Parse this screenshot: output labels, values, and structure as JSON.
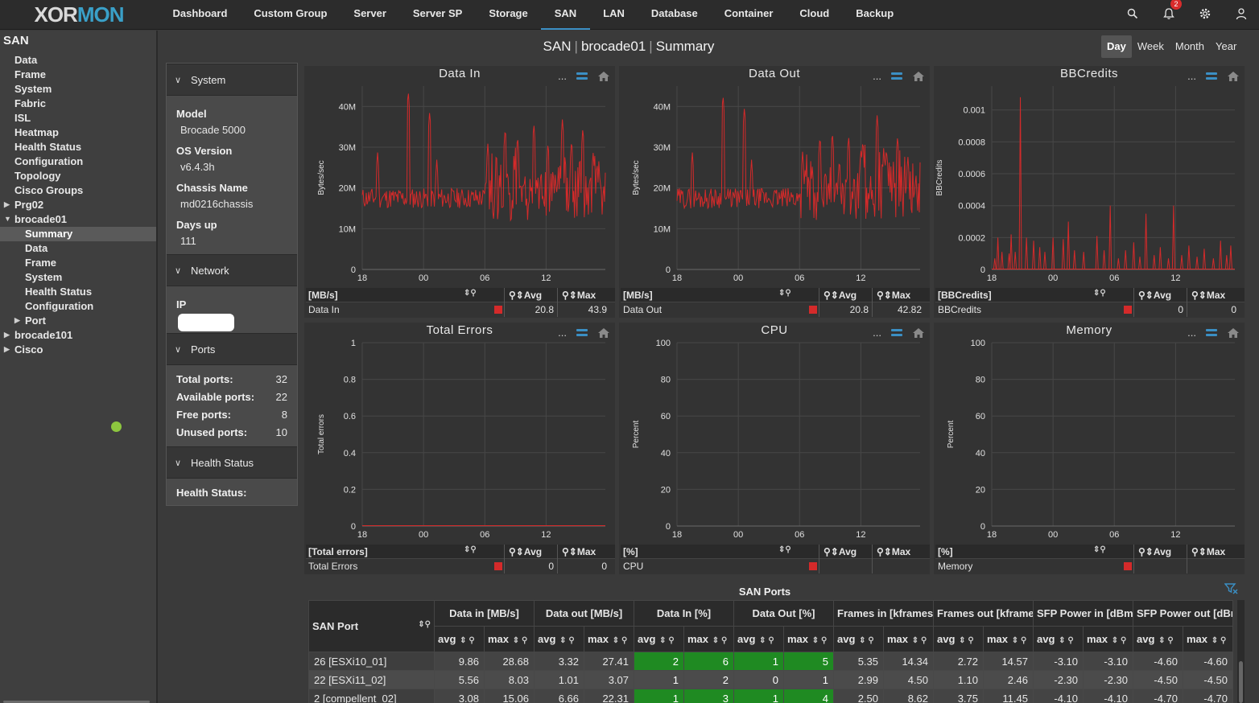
{
  "app": {
    "logo_left": "XOR",
    "logo_right": "MON"
  },
  "nav": {
    "items": [
      "Dashboard",
      "Custom Group",
      "Server",
      "Server SP",
      "Storage",
      "SAN",
      "LAN",
      "Database",
      "Container",
      "Cloud",
      "Backup"
    ],
    "active": "SAN"
  },
  "notifications": {
    "count": "2"
  },
  "sidebar": {
    "title": "SAN",
    "items": [
      {
        "label": "Data",
        "level": 1
      },
      {
        "label": "Frame",
        "level": 1
      },
      {
        "label": "System",
        "level": 1
      },
      {
        "label": "Fabric",
        "level": 1
      },
      {
        "label": "ISL",
        "level": 1
      },
      {
        "label": "Heatmap",
        "level": 1
      },
      {
        "label": "Health Status",
        "level": 1
      },
      {
        "label": "Configuration",
        "level": 1
      },
      {
        "label": "Topology",
        "level": 1
      },
      {
        "label": "Cisco Groups",
        "level": 1
      },
      {
        "label": "Prg02",
        "level": 1,
        "arrow": "collapsed"
      },
      {
        "label": "brocade01",
        "level": 1,
        "arrow": "expanded"
      },
      {
        "label": "Summary",
        "level": 2,
        "selected": true
      },
      {
        "label": "Data",
        "level": 2
      },
      {
        "label": "Frame",
        "level": 2
      },
      {
        "label": "System",
        "level": 2
      },
      {
        "label": "Health Status",
        "level": 2
      },
      {
        "label": "Configuration",
        "level": 2
      },
      {
        "label": "Port",
        "level": 2,
        "arrow": "collapsed"
      },
      {
        "label": "brocade101",
        "level": 1,
        "arrow": "collapsed"
      },
      {
        "label": "Cisco",
        "level": 1,
        "arrow": "collapsed"
      }
    ]
  },
  "header": {
    "section": "SAN",
    "device": "brocade01",
    "page": "Summary"
  },
  "range_tabs": {
    "items": [
      "Day",
      "Week",
      "Month",
      "Year"
    ],
    "active": "Day"
  },
  "info": {
    "system": {
      "title": "System",
      "model_label": "Model",
      "model": "Brocade 5000",
      "os_label": "OS Version",
      "os": "v6.4.3h",
      "chassis_label": "Chassis Name",
      "chassis": "md0216chassis",
      "days_label": "Days up",
      "days": "111"
    },
    "network": {
      "title": "Network",
      "ip_label": "IP"
    },
    "ports": {
      "title": "Ports",
      "total_label": "Total ports:",
      "total": "32",
      "available_label": "Available ports:",
      "available": "22",
      "free_label": "Free ports:",
      "free": "8",
      "unused_label": "Unused ports:",
      "unused": "10"
    },
    "health": {
      "title": "Health Status",
      "label": "Health Status:",
      "status_color": "#8dc63f"
    }
  },
  "legend_headers": {
    "avg": "Avg",
    "max": "Max"
  },
  "colors": {
    "series": "#d42a2a",
    "green_cell": "#1f8a22",
    "accent": "#3b8fc4"
  },
  "chart_data": [
    {
      "type": "line",
      "title": "Data In",
      "ylabel": "Bytes/sec",
      "ylim": [
        0,
        45000000
      ],
      "y_ticks": [
        "0",
        "10M",
        "20M",
        "30M",
        "40M"
      ],
      "y_tick_values": [
        0,
        10000000,
        20000000,
        30000000,
        40000000
      ],
      "x_ticks": [
        "18",
        "00",
        "06",
        "12"
      ],
      "x_tick_positions": [
        0,
        6,
        12,
        18
      ],
      "x_range": [
        0,
        23.8
      ],
      "series": [
        {
          "name": "Data In",
          "seed": 11,
          "base": 17500000,
          "noise": 2500000,
          "peaks": [
            [
              1.5,
              29000000
            ],
            [
              4.5,
              44000000
            ],
            [
              6.6,
              39000000
            ],
            [
              7.3,
              27000000
            ],
            [
              12.3,
              31000000
            ],
            [
              14.0,
              35000000
            ],
            [
              15.2,
              33000000
            ],
            [
              16.8,
              36000000
            ],
            [
              18.2,
              31000000
            ],
            [
              19.6,
              37000000
            ],
            [
              20.5,
              32000000
            ],
            [
              21.6,
              35000000
            ],
            [
              22.6,
              29000000
            ]
          ],
          "busy": [
            [
              12,
              23.8
            ]
          ]
        }
      ],
      "legend": {
        "unit": "[MB/s]",
        "name": "Data In",
        "avg": "20.8",
        "max": "43.9"
      }
    },
    {
      "type": "line",
      "title": "Data Out",
      "ylabel": "Bytes/sec",
      "ylim": [
        0,
        45000000
      ],
      "y_ticks": [
        "0",
        "10M",
        "20M",
        "30M",
        "40M"
      ],
      "y_tick_values": [
        0,
        10000000,
        20000000,
        30000000,
        40000000
      ],
      "x_ticks": [
        "18",
        "00",
        "06",
        "12"
      ],
      "x_tick_positions": [
        0,
        6,
        12,
        18
      ],
      "x_range": [
        0,
        23.8
      ],
      "series": [
        {
          "name": "Data Out",
          "seed": 29,
          "base": 17500000,
          "noise": 2500000,
          "peaks": [
            [
              1.5,
              29000000
            ],
            [
              4.5,
              43000000
            ],
            [
              6.6,
              40000000
            ],
            [
              7.3,
              27000000
            ],
            [
              12.3,
              29000000
            ],
            [
              14.0,
              33000000
            ],
            [
              15.2,
              34000000
            ],
            [
              16.8,
              33000000
            ],
            [
              18.2,
              32000000
            ],
            [
              19.6,
              38000000
            ],
            [
              20.5,
              30000000
            ],
            [
              21.6,
              33000000
            ],
            [
              22.6,
              28000000
            ]
          ],
          "busy": [
            [
              12,
              23.8
            ]
          ]
        }
      ],
      "legend": {
        "unit": "[MB/s]",
        "name": "Data Out",
        "avg": "20.8",
        "max": "42.82"
      }
    },
    {
      "type": "line",
      "title": "BBCredits",
      "ylabel": "BBCredits",
      "ylim": [
        0,
        0.00115
      ],
      "y_ticks": [
        "0",
        "0.0002",
        "0.0004",
        "0.0006",
        "0.0008",
        "0.001"
      ],
      "y_tick_values": [
        0,
        0.0002,
        0.0004,
        0.0006,
        0.0008,
        0.001
      ],
      "x_ticks": [
        "18",
        "00",
        "06",
        "12"
      ],
      "x_tick_positions": [
        0,
        6,
        12,
        18
      ],
      "x_range": [
        0,
        23.8
      ],
      "series": [
        {
          "name": "BBCredits",
          "spikes": [
            [
              0.3,
              7e-05
            ],
            [
              0.6,
              0.0002
            ],
            [
              1.0,
              0.00011
            ],
            [
              1.7,
              0.0001
            ],
            [
              1.9,
              0.00022
            ],
            [
              2.3,
              0.00011
            ],
            [
              2.8,
              0.00108
            ],
            [
              3.4,
              0.0002
            ],
            [
              4.1,
              0.00018
            ],
            [
              4.7,
              0.00014
            ],
            [
              5.2,
              0.00011
            ],
            [
              6.0,
              0.0002
            ],
            [
              7.0,
              0.00019
            ],
            [
              7.5,
              0.0003
            ],
            [
              8.1,
              0.00012
            ],
            [
              9.0,
              0.00011
            ],
            [
              10.3,
              0.00021
            ],
            [
              11.0,
              0.00012
            ],
            [
              11.6,
              0.0004
            ],
            [
              12.4,
              7e-05
            ],
            [
              13.1,
              0.00012
            ],
            [
              13.9,
              0.00017
            ],
            [
              14.5,
              8e-05
            ],
            [
              15.1,
              0.00035
            ],
            [
              15.9,
              9e-05
            ],
            [
              16.5,
              0.00014
            ],
            [
              17.3,
              7e-05
            ],
            [
              17.8,
              0.0004
            ],
            [
              18.6,
              9e-05
            ],
            [
              19.3,
              0.00015
            ],
            [
              20.1,
              8e-05
            ],
            [
              20.8,
              0.00013
            ],
            [
              21.7,
              7e-05
            ],
            [
              22.4,
              0.00018
            ],
            [
              23.0,
              9e-05
            ],
            [
              23.4,
              0.00015
            ]
          ]
        }
      ],
      "legend": {
        "unit": "[BBCredits]",
        "name": "BBCredits",
        "avg": "0",
        "max": "0"
      }
    },
    {
      "type": "line",
      "title": "Total Errors",
      "ylabel": "Total errors",
      "ylim": [
        0,
        1
      ],
      "y_ticks": [
        "0",
        "0.2",
        "0.4",
        "0.6",
        "0.8",
        "1"
      ],
      "y_tick_values": [
        0,
        0.2,
        0.4,
        0.6,
        0.8,
        1
      ],
      "x_ticks": [
        "18",
        "00",
        "06",
        "12"
      ],
      "x_tick_positions": [
        0,
        6,
        12,
        18
      ],
      "x_range": [
        0,
        23.8
      ],
      "series": [
        {
          "name": "Total Errors",
          "flat": 0
        }
      ],
      "legend": {
        "unit": "[Total errors]",
        "name": "Total Errors",
        "avg": "0",
        "max": "0"
      }
    },
    {
      "type": "line",
      "title": "CPU",
      "ylabel": "Percent",
      "ylim": [
        0,
        100
      ],
      "y_ticks": [
        "0",
        "20",
        "40",
        "60",
        "80",
        "100"
      ],
      "y_tick_values": [
        0,
        20,
        40,
        60,
        80,
        100
      ],
      "x_ticks": [
        "18",
        "00",
        "06",
        "12"
      ],
      "x_tick_positions": [
        0,
        6,
        12,
        18
      ],
      "x_range": [
        0,
        23.8
      ],
      "series": [
        {
          "name": "CPU"
        }
      ],
      "legend": {
        "unit": "[%]",
        "name": "CPU",
        "avg": "",
        "max": ""
      }
    },
    {
      "type": "line",
      "title": "Memory",
      "ylabel": "Percent",
      "ylim": [
        0,
        100
      ],
      "y_ticks": [
        "0",
        "20",
        "40",
        "60",
        "80",
        "100"
      ],
      "y_tick_values": [
        0,
        20,
        40,
        60,
        80,
        100
      ],
      "x_ticks": [
        "18",
        "00",
        "06",
        "12"
      ],
      "x_tick_positions": [
        0,
        6,
        12,
        18
      ],
      "x_range": [
        0,
        23.8
      ],
      "series": [
        {
          "name": "Memory"
        }
      ],
      "legend": {
        "unit": "[%]",
        "name": "Memory",
        "avg": "",
        "max": ""
      }
    }
  ],
  "table": {
    "title": "SAN Ports",
    "first_col": "SAN Port",
    "groups": [
      "Data in [MB/s]",
      "Data out [MB/s]",
      "Data In [%]",
      "Data Out [%]",
      "Frames in [kframes/s]",
      "Frames out [kframes/s]",
      "SFP Power in [dBm]",
      "SFP Power out [dBm]"
    ],
    "subheaders": [
      "avg",
      "max"
    ],
    "rows": [
      {
        "port": "26 [ESXi10_01]",
        "values": [
          "9.86",
          "28.68",
          "3.32",
          "27.41",
          "2",
          "6",
          "1",
          "5",
          "5.35",
          "14.34",
          "2.72",
          "14.57",
          "-3.10",
          "-3.10",
          "-4.60",
          "-4.60"
        ]
      },
      {
        "port": "22 [ESXi11_02]",
        "values": [
          "5.56",
          "8.03",
          "1.01",
          "3.07",
          "1",
          "2",
          "0",
          "1",
          "2.99",
          "4.50",
          "1.10",
          "2.46",
          "-2.30",
          "-2.30",
          "-4.50",
          "-4.50"
        ]
      },
      {
        "port": "2 [compellent_02]",
        "values": [
          "3.08",
          "15.06",
          "6.66",
          "22.31",
          "1",
          "3",
          "1",
          "4",
          "2.50",
          "8.62",
          "3.75",
          "11.45",
          "-4.10",
          "-4.10",
          "-4.70",
          "-4.70"
        ]
      }
    ]
  }
}
